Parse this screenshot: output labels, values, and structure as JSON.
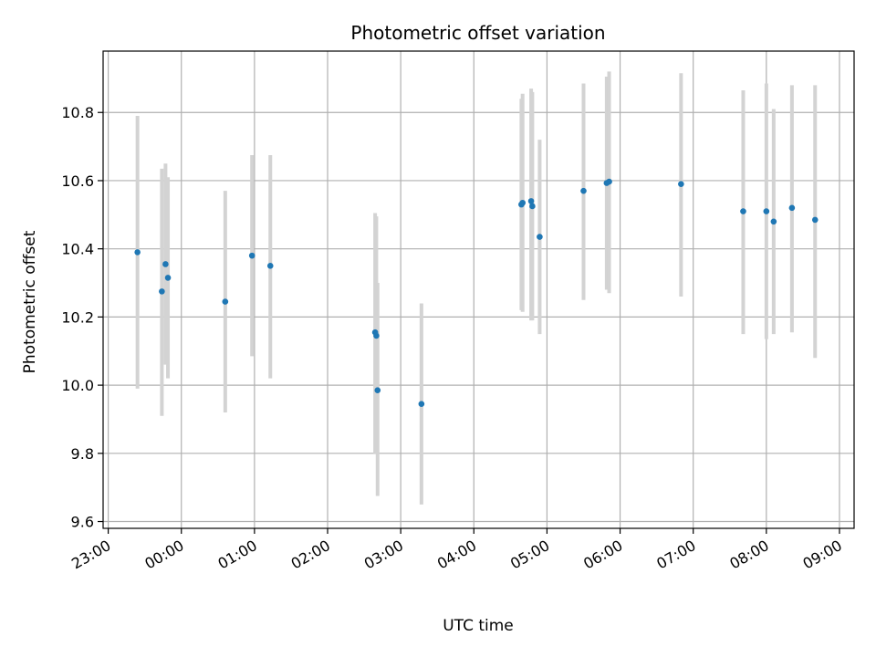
{
  "chart_data": {
    "type": "scatter",
    "title": "Photometric offset variation",
    "xlabel": "UTC time",
    "ylabel": "Photometric offset",
    "x_tick_labels": [
      "23:00",
      "00:00",
      "01:00",
      "02:00",
      "03:00",
      "04:00",
      "05:00",
      "06:00",
      "07:00",
      "08:00",
      "09:00"
    ],
    "y_ticks": [
      "9.6",
      "9.8",
      "10.0",
      "10.2",
      "10.4",
      "10.6",
      "10.8"
    ],
    "xlim": [
      22.93,
      33.2
    ],
    "ylim": [
      9.58,
      10.98
    ],
    "grid": true,
    "colors": {
      "point": "#1f77b4",
      "errorbar": "#d3d3d3",
      "grid": "#b0b0b0"
    },
    "points": [
      {
        "x": "23:24",
        "y": 10.39,
        "ylow": 9.99,
        "yhigh": 10.79
      },
      {
        "x": "23:44",
        "y": 10.275,
        "ylow": 9.91,
        "yhigh": 10.635
      },
      {
        "x": "23:47",
        "y": 10.355,
        "ylow": 10.06,
        "yhigh": 10.65
      },
      {
        "x": "23:49",
        "y": 10.315,
        "ylow": 10.02,
        "yhigh": 10.61
      },
      {
        "x": "00:36",
        "y": 10.245,
        "ylow": 9.92,
        "yhigh": 10.57
      },
      {
        "x": "00:58",
        "y": 10.38,
        "ylow": 10.085,
        "yhigh": 10.675
      },
      {
        "x": "01:13",
        "y": 10.35,
        "ylow": 10.02,
        "yhigh": 10.675
      },
      {
        "x": "02:39",
        "y": 10.155,
        "ylow": 9.8,
        "yhigh": 10.505
      },
      {
        "x": "02:40",
        "y": 10.145,
        "ylow": 9.8,
        "yhigh": 10.495
      },
      {
        "x": "02:41",
        "y": 9.985,
        "ylow": 9.675,
        "yhigh": 10.3
      },
      {
        "x": "03:17",
        "y": 9.945,
        "ylow": 9.65,
        "yhigh": 10.24
      },
      {
        "x": "04:39",
        "y": 10.53,
        "ylow": 10.22,
        "yhigh": 10.84
      },
      {
        "x": "04:40",
        "y": 10.535,
        "ylow": 10.215,
        "yhigh": 10.855
      },
      {
        "x": "04:47",
        "y": 10.54,
        "ylow": 10.19,
        "yhigh": 10.87
      },
      {
        "x": "04:48",
        "y": 10.525,
        "ylow": 10.19,
        "yhigh": 10.86
      },
      {
        "x": "04:54",
        "y": 10.435,
        "ylow": 10.15,
        "yhigh": 10.72
      },
      {
        "x": "05:30",
        "y": 10.57,
        "ylow": 10.25,
        "yhigh": 10.885
      },
      {
        "x": "05:49",
        "y": 10.593,
        "ylow": 10.28,
        "yhigh": 10.905
      },
      {
        "x": "05:51",
        "y": 10.597,
        "ylow": 10.27,
        "yhigh": 10.92
      },
      {
        "x": "06:50",
        "y": 10.59,
        "ylow": 10.26,
        "yhigh": 10.915
      },
      {
        "x": "07:41",
        "y": 10.51,
        "ylow": 10.15,
        "yhigh": 10.865
      },
      {
        "x": "08:00",
        "y": 10.51,
        "ylow": 10.135,
        "yhigh": 10.885
      },
      {
        "x": "08:06",
        "y": 10.48,
        "ylow": 10.15,
        "yhigh": 10.81
      },
      {
        "x": "08:21",
        "y": 10.52,
        "ylow": 10.155,
        "yhigh": 10.88
      },
      {
        "x": "08:40",
        "y": 10.485,
        "ylow": 10.08,
        "yhigh": 10.88
      }
    ]
  }
}
